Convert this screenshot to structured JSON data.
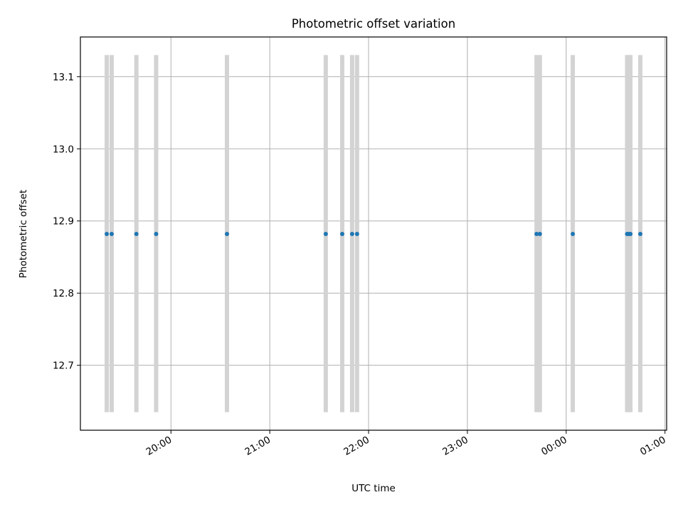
{
  "chart_data": {
    "type": "scatter",
    "title": "Photometric offset variation",
    "xlabel": "UTC time",
    "ylabel": "Photometric offset",
    "xlim": [
      "19:05",
      "01:01"
    ],
    "ylim": [
      12.61,
      13.155
    ],
    "x_ticks": [
      "20:00",
      "21:00",
      "22:00",
      "23:00",
      "00:00",
      "01:00"
    ],
    "y_ticks": [
      "12.7",
      "12.8",
      "12.9",
      "13.0",
      "13.1"
    ],
    "grid": true,
    "band_range": [
      12.635,
      13.13
    ],
    "series": [
      {
        "x": [
          "19:21",
          "19:24",
          "19:39",
          "19:51",
          "20:34",
          "21:34",
          "21:44",
          "21:50",
          "21:53",
          "23:42",
          "23:44",
          "00:04",
          "00:37",
          "00:38",
          "00:39",
          "00:45"
        ],
        "y": [
          12.882,
          12.882,
          12.882,
          12.882,
          12.882,
          12.882,
          12.882,
          12.882,
          12.882,
          12.882,
          12.882,
          12.882,
          12.882,
          12.882,
          12.882,
          12.882
        ]
      }
    ],
    "colors": {
      "points": "#1f77b4",
      "bands": "#d3d3d3",
      "grid": "#b0b0b0",
      "axes": "#000000"
    }
  }
}
